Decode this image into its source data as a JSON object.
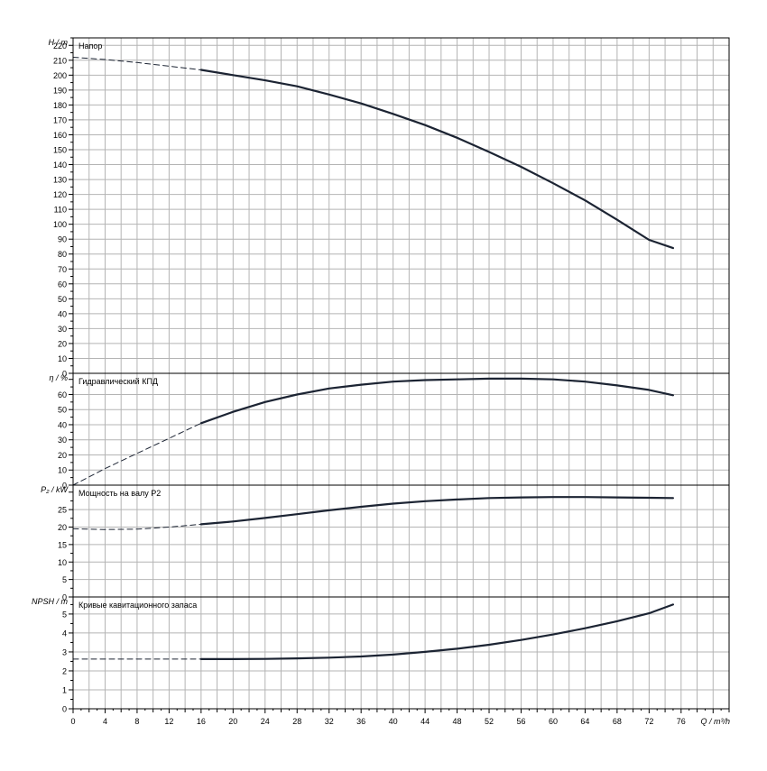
{
  "x_axis": {
    "label": "Q / m³/h",
    "ticks": [
      "0",
      "4",
      "8",
      "12",
      "16",
      "20",
      "24",
      "28",
      "32",
      "36",
      "40",
      "44",
      "48",
      "52",
      "56",
      "60",
      "64",
      "68",
      "72",
      "76"
    ]
  },
  "colors": {
    "curve": "#1c2433",
    "grid": "#b4b4b4",
    "frame": "#000000"
  },
  "chart_data": [
    {
      "type": "line",
      "title": "Напор",
      "ylabel": "H / m",
      "xlim": [
        0,
        82
      ],
      "ylim": [
        0,
        225
      ],
      "x_ticks": [
        0,
        4,
        8,
        12,
        16,
        20,
        24,
        28,
        32,
        36,
        40,
        44,
        48,
        52,
        56,
        60,
        64,
        68,
        72,
        76
      ],
      "y_ticks": [
        0,
        10,
        20,
        30,
        40,
        50,
        60,
        70,
        80,
        90,
        100,
        110,
        120,
        130,
        140,
        150,
        160,
        170,
        180,
        190,
        200,
        210,
        220
      ],
      "grid": true,
      "series": [
        {
          "style": "dashed",
          "x": [
            0,
            4,
            8,
            12,
            16
          ],
          "y": [
            212,
            210.5,
            208.5,
            206,
            203.5
          ]
        },
        {
          "style": "solid",
          "x": [
            16,
            20,
            24,
            28,
            32,
            36,
            40,
            44,
            48,
            52,
            56,
            60,
            64,
            68,
            72,
            75
          ],
          "y": [
            203.5,
            200,
            196.5,
            192.5,
            187,
            181,
            174,
            166.5,
            158,
            148.5,
            138.5,
            127.5,
            116,
            103,
            89.5,
            84
          ]
        }
      ]
    },
    {
      "type": "line",
      "title": "Гидравлический КПД",
      "ylabel": "η / %",
      "xlim": [
        0,
        82
      ],
      "ylim": [
        0,
        74
      ],
      "x_ticks": [
        0,
        4,
        8,
        12,
        16,
        20,
        24,
        28,
        32,
        36,
        40,
        44,
        48,
        52,
        56,
        60,
        64,
        68,
        72,
        76
      ],
      "y_ticks": [
        0,
        10,
        20,
        30,
        40,
        50,
        60
      ],
      "grid": true,
      "series": [
        {
          "style": "dashed",
          "x": [
            0,
            4,
            8,
            12,
            16
          ],
          "y": [
            0,
            11,
            21,
            31,
            41
          ]
        },
        {
          "style": "solid",
          "x": [
            16,
            20,
            24,
            28,
            32,
            36,
            40,
            44,
            48,
            52,
            56,
            60,
            64,
            68,
            72,
            75
          ],
          "y": [
            41,
            48.5,
            55,
            60,
            64,
            66.5,
            68.5,
            69.5,
            70,
            70.5,
            70.5,
            70,
            68.5,
            66,
            63,
            59.5
          ]
        }
      ]
    },
    {
      "type": "line",
      "title": "Мощность на валу P2",
      "ylabel": "P₂ / kW",
      "xlim": [
        0,
        82
      ],
      "ylim": [
        0,
        32
      ],
      "x_ticks": [
        0,
        4,
        8,
        12,
        16,
        20,
        24,
        28,
        32,
        36,
        40,
        44,
        48,
        52,
        56,
        60,
        64,
        68,
        72,
        76
      ],
      "y_ticks": [
        0,
        5,
        10,
        15,
        20,
        25
      ],
      "grid": true,
      "series": [
        {
          "style": "dashed",
          "x": [
            0,
            4,
            8,
            12,
            16
          ],
          "y": [
            19.5,
            19.3,
            19.4,
            20,
            20.8
          ]
        },
        {
          "style": "solid",
          "x": [
            16,
            20,
            24,
            28,
            32,
            36,
            40,
            44,
            48,
            52,
            56,
            60,
            64,
            68,
            72,
            75
          ],
          "y": [
            20.8,
            21.6,
            22.6,
            23.7,
            24.8,
            25.8,
            26.7,
            27.4,
            27.9,
            28.3,
            28.5,
            28.6,
            28.6,
            28.5,
            28.4,
            28.3
          ]
        }
      ]
    },
    {
      "type": "line",
      "title": "Кривые кавитационного запаса",
      "ylabel": "NPSH / m",
      "xlim": [
        0,
        82
      ],
      "ylim": [
        0,
        5.9
      ],
      "x_ticks": [
        0,
        4,
        8,
        12,
        16,
        20,
        24,
        28,
        32,
        36,
        40,
        44,
        48,
        52,
        56,
        60,
        64,
        68,
        72,
        76
      ],
      "y_ticks": [
        0,
        1,
        2,
        3,
        4,
        5
      ],
      "grid": true,
      "series": [
        {
          "style": "dashed",
          "x": [
            0,
            16
          ],
          "y": [
            2.62,
            2.62
          ]
        },
        {
          "style": "solid",
          "x": [
            16,
            20,
            24,
            28,
            32,
            36,
            40,
            44,
            48,
            52,
            56,
            60,
            64,
            68,
            72,
            75
          ],
          "y": [
            2.62,
            2.62,
            2.63,
            2.66,
            2.7,
            2.76,
            2.86,
            3.0,
            3.17,
            3.38,
            3.63,
            3.92,
            4.25,
            4.62,
            5.04,
            5.5
          ]
        }
      ]
    }
  ]
}
